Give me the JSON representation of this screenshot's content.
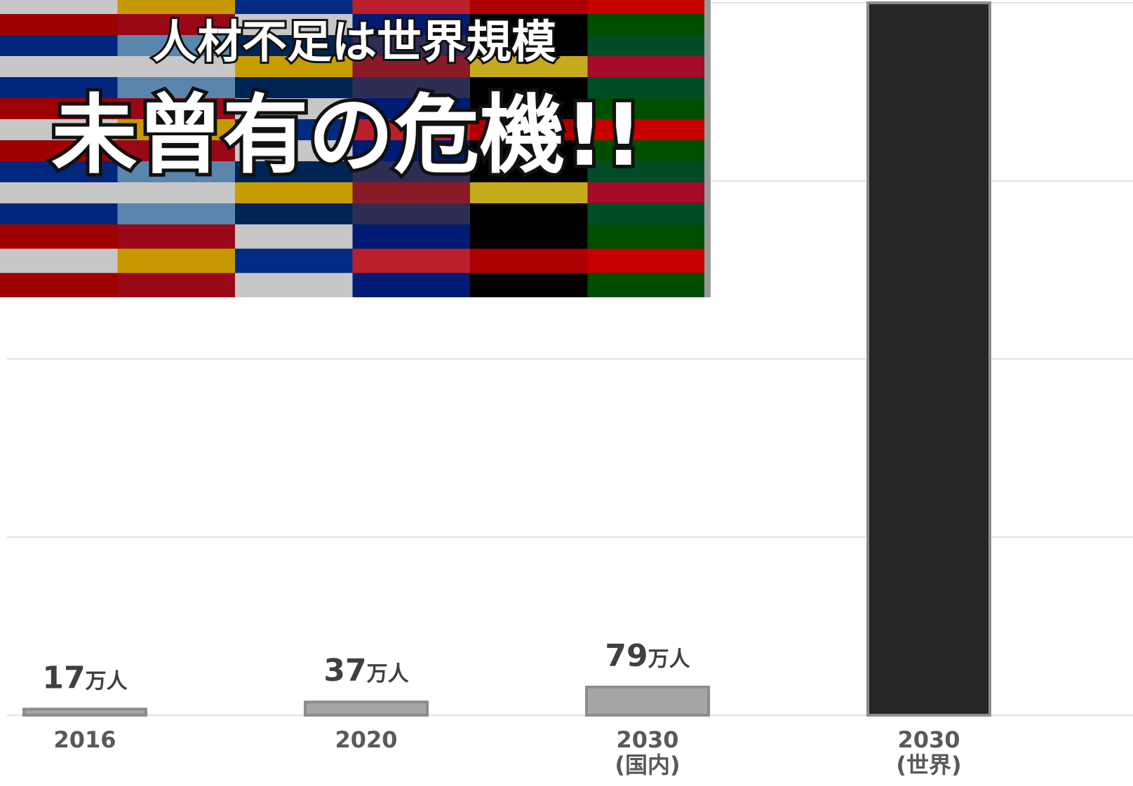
{
  "chart_data": {
    "type": "bar",
    "overlay": {
      "headline": "人材不足は世界規模",
      "subheadline": "未曾有の危機!!"
    },
    "categories": [
      "2016",
      "2020",
      "2030\n(国内)",
      "2030\n(世界)"
    ],
    "values": [
      17,
      37,
      79,
      2000
    ],
    "value_labels": [
      "17万人",
      "37万人",
      "79万人",
      null
    ],
    "colors": [
      "#a6a6a6",
      "#a6a6a6",
      "#a6a6a6",
      "#262626"
    ],
    "ylim": [
      0,
      2000
    ],
    "yticks": [
      0,
      500,
      1000,
      1500,
      2000
    ],
    "grid": true
  }
}
